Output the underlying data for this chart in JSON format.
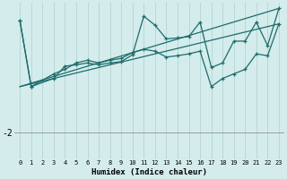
{
  "xlabel": "Humidex (Indice chaleur)",
  "background_color": "#d4ecec",
  "grid_color": "#b8d8d8",
  "line_color": "#1e6b6b",
  "x_min": 0,
  "x_max": 23,
  "y_min": -2.6,
  "y_max": 0.85,
  "ytick_values": [
    -2
  ],
  "ytick_labels": [
    "-2"
  ],
  "series_lines": [
    {
      "x": [
        0,
        23
      ],
      "y": [
        -1.0,
        0.72
      ]
    },
    {
      "x": [
        0,
        23
      ],
      "y": [
        -1.0,
        0.38
      ]
    }
  ],
  "series_data": [
    {
      "x": [
        0,
        1,
        3,
        4,
        5,
        6,
        7,
        8,
        9,
        10,
        11,
        12,
        13,
        14,
        15,
        16,
        17,
        18,
        19,
        20,
        21,
        22,
        23
      ],
      "y": [
        0.45,
        -1.0,
        -0.82,
        -0.55,
        -0.52,
        -0.48,
        -0.52,
        -0.48,
        -0.45,
        -0.3,
        0.55,
        0.35,
        0.05,
        0.07,
        0.1,
        0.42,
        -0.58,
        -0.48,
        0.0,
        0.0,
        0.42,
        -0.1,
        0.72
      ]
    },
    {
      "x": [
        0,
        1,
        3,
        4,
        5,
        6,
        7,
        8,
        9,
        10,
        11,
        12,
        13,
        14,
        15,
        16,
        17,
        18,
        19,
        20,
        21,
        22,
        23
      ],
      "y": [
        0.45,
        -1.0,
        -0.72,
        -0.62,
        -0.48,
        -0.42,
        -0.48,
        -0.42,
        -0.38,
        -0.25,
        -0.18,
        -0.22,
        -0.35,
        -0.32,
        -0.28,
        -0.22,
        -1.0,
        -0.82,
        -0.72,
        -0.62,
        -0.28,
        -0.32,
        0.38
      ]
    }
  ]
}
